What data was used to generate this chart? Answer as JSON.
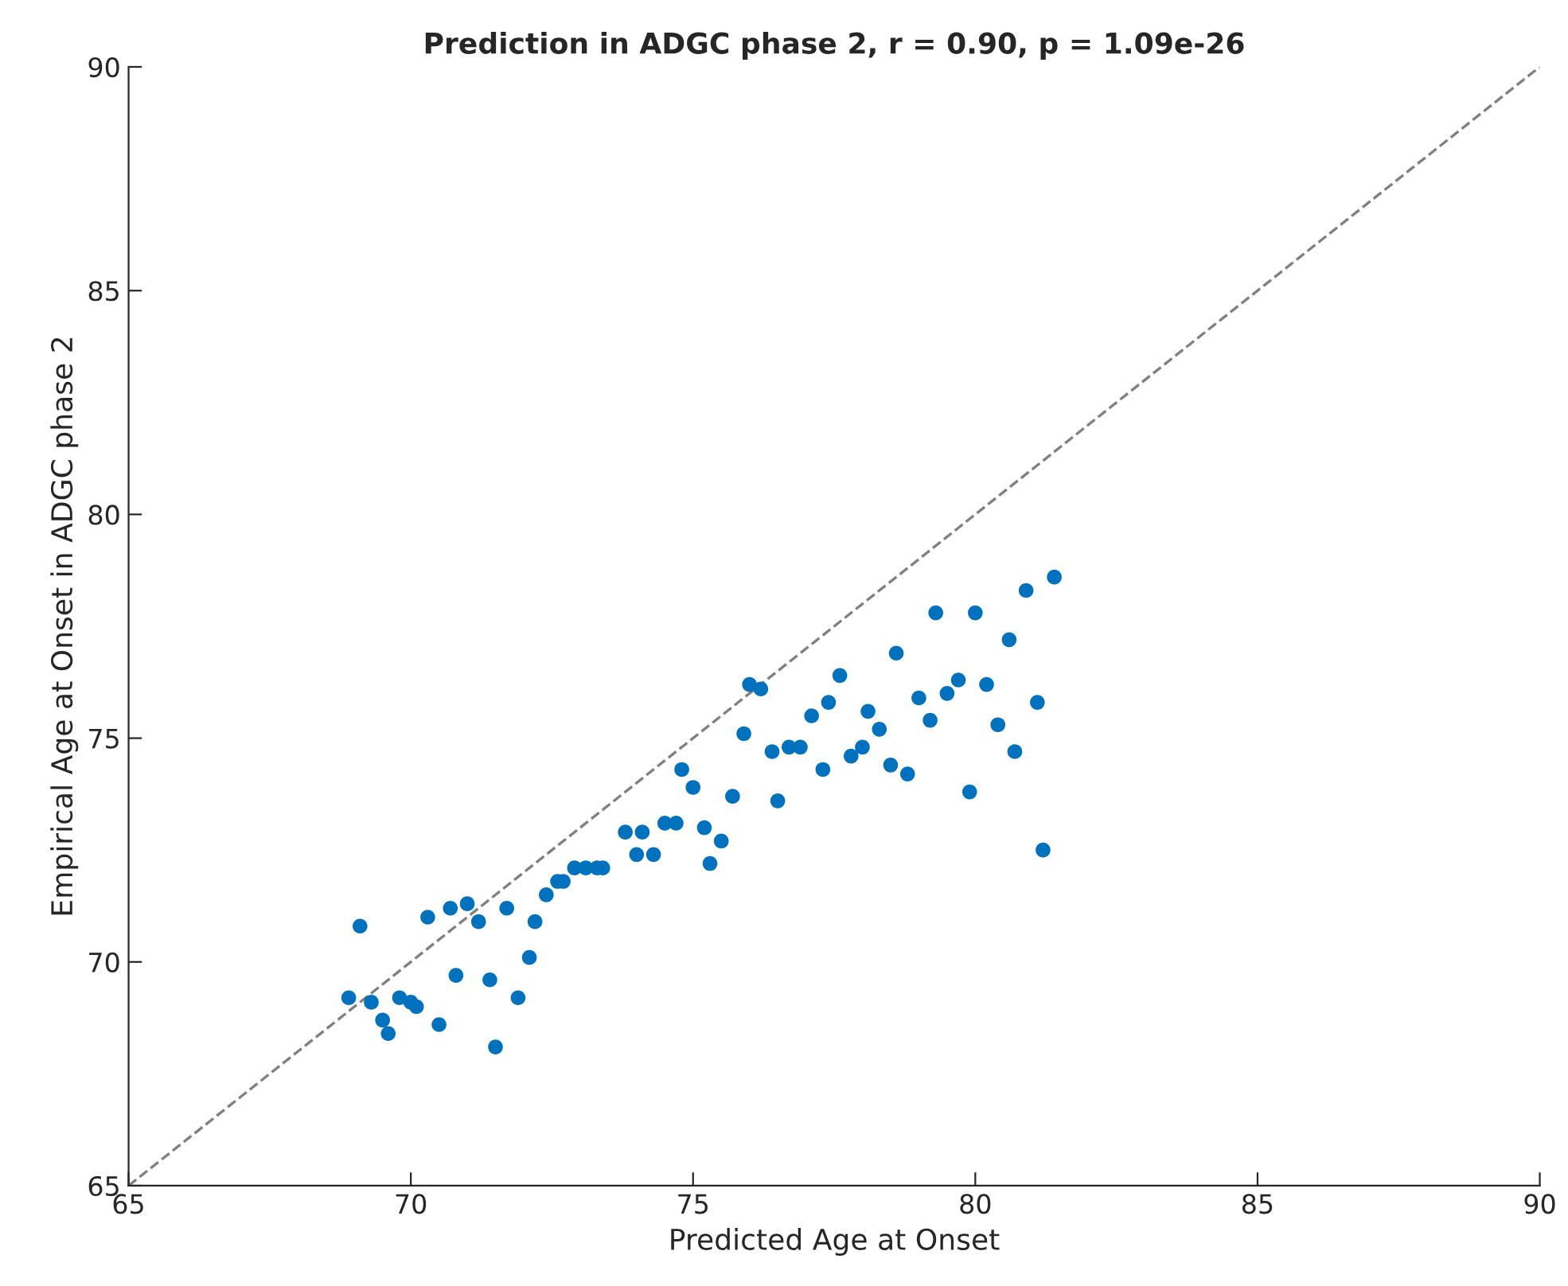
{
  "chart_data": {
    "type": "scatter",
    "title": "Prediction in ADGC phase 2, r = 0.90, p = 1.09e-26",
    "xlabel": "Predicted Age at Onset",
    "ylabel": "Empirical Age at Onset in ADGC phase 2",
    "xlim": [
      65,
      90
    ],
    "ylim": [
      65,
      90
    ],
    "xticks": [
      65,
      70,
      75,
      80,
      85,
      90
    ],
    "yticks": [
      65,
      70,
      75,
      80,
      85,
      90
    ],
    "grid": false,
    "marker": "circle",
    "series": [
      {
        "color": "#0072bd",
        "x": [
          68.9,
          69.1,
          69.3,
          69.5,
          69.6,
          69.8,
          70.0,
          70.1,
          70.3,
          70.5,
          70.7,
          70.8,
          71.0,
          71.2,
          71.4,
          71.5,
          71.7,
          71.9,
          72.1,
          72.2,
          72.4,
          72.6,
          72.7,
          72.9,
          73.1,
          73.3,
          73.4,
          73.8,
          74.0,
          74.1,
          74.3,
          74.5,
          74.7,
          75.2,
          75.3,
          75.5,
          74.8,
          75.0,
          75.7,
          75.9,
          76.0,
          76.2,
          76.4,
          76.5,
          76.7,
          76.9,
          77.1,
          77.3,
          77.4,
          77.6,
          77.8,
          78.0,
          78.1,
          78.3,
          78.5,
          78.6,
          78.8,
          79.0,
          79.2,
          79.3,
          79.5,
          79.7,
          79.9,
          80.0,
          80.2,
          80.4,
          80.6,
          80.7,
          80.9,
          81.1,
          81.2,
          81.4
        ],
        "values": [
          69.2,
          70.8,
          69.1,
          68.7,
          68.4,
          69.2,
          69.1,
          69.0,
          71.0,
          68.6,
          71.2,
          69.7,
          71.3,
          70.9,
          69.6,
          68.1,
          71.2,
          69.2,
          70.1,
          70.9,
          71.5,
          71.8,
          71.8,
          72.1,
          72.1,
          72.1,
          72.1,
          72.9,
          72.4,
          72.9,
          72.4,
          73.1,
          73.1,
          73.0,
          72.2,
          72.7,
          74.3,
          73.9,
          73.7,
          75.1,
          76.2,
          76.1,
          74.7,
          73.6,
          74.8,
          74.8,
          75.5,
          74.3,
          75.8,
          76.4,
          74.6,
          74.8,
          75.6,
          75.2,
          74.4,
          76.9,
          74.2,
          75.9,
          75.4,
          77.8,
          76.0,
          76.3,
          73.8,
          77.8,
          76.2,
          75.3,
          77.2,
          74.7,
          78.3,
          75.8,
          72.5,
          78.6
        ]
      },
      {
        "type": "line",
        "color": "#808080",
        "line_style": "dashed",
        "marker": "none",
        "x": [
          65,
          90
        ],
        "values": [
          65,
          90
        ]
      }
    ]
  }
}
